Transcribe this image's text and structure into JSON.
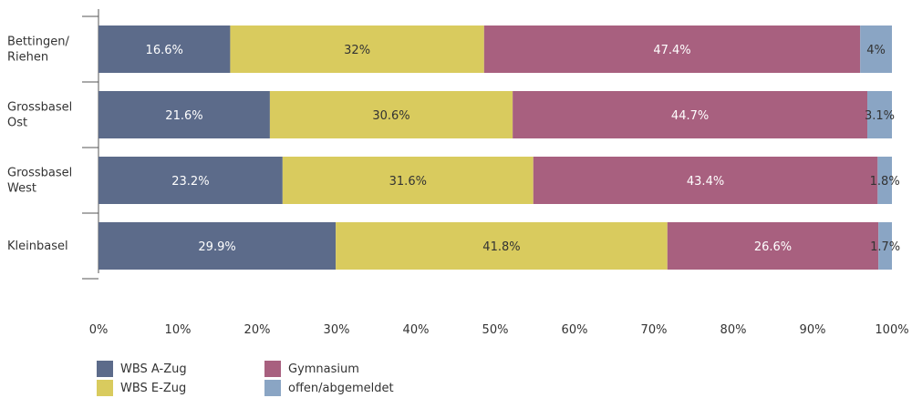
{
  "chart_data": {
    "type": "bar",
    "orientation": "horizontal",
    "stacked": true,
    "categories": [
      "Bettingen/\nRiehen",
      "Grossbasel\nOst",
      "Grossbasel\nWest",
      "Kleinbasel"
    ],
    "series": [
      {
        "name": "WBS A-Zug",
        "color": "#5c6b8a",
        "label_color": "#ffffff",
        "values": [
          16.6,
          21.6,
          23.2,
          29.9
        ],
        "labels": [
          "16.6%",
          "21.6%",
          "23.2%",
          "29.9%"
        ]
      },
      {
        "name": "WBS E-Zug",
        "color": "#d9cb5e",
        "label_color": "#333333",
        "values": [
          32,
          30.6,
          31.6,
          41.8
        ],
        "labels": [
          "32%",
          "30.6%",
          "31.6%",
          "41.8%"
        ]
      },
      {
        "name": "Gymnasium",
        "color": "#a8607f",
        "label_color": "#ffffff",
        "values": [
          47.4,
          44.7,
          43.4,
          26.6
        ],
        "labels": [
          "47.4%",
          "44.7%",
          "43.4%",
          "26.6%"
        ]
      },
      {
        "name": "offen/abgemeldet",
        "color": "#8aa5c4",
        "label_color": "#333333",
        "values": [
          4,
          3.1,
          1.8,
          1.7
        ],
        "labels": [
          "4%",
          "3.1%",
          "1.8%",
          "1.7%"
        ]
      }
    ],
    "xlim": [
      0,
      100
    ],
    "xticks": [
      "0%",
      "10%",
      "20%",
      "30%",
      "40%",
      "50%",
      "60%",
      "70%",
      "80%",
      "90%",
      "100%"
    ],
    "grid": false,
    "legend_position": "bottom-left"
  }
}
